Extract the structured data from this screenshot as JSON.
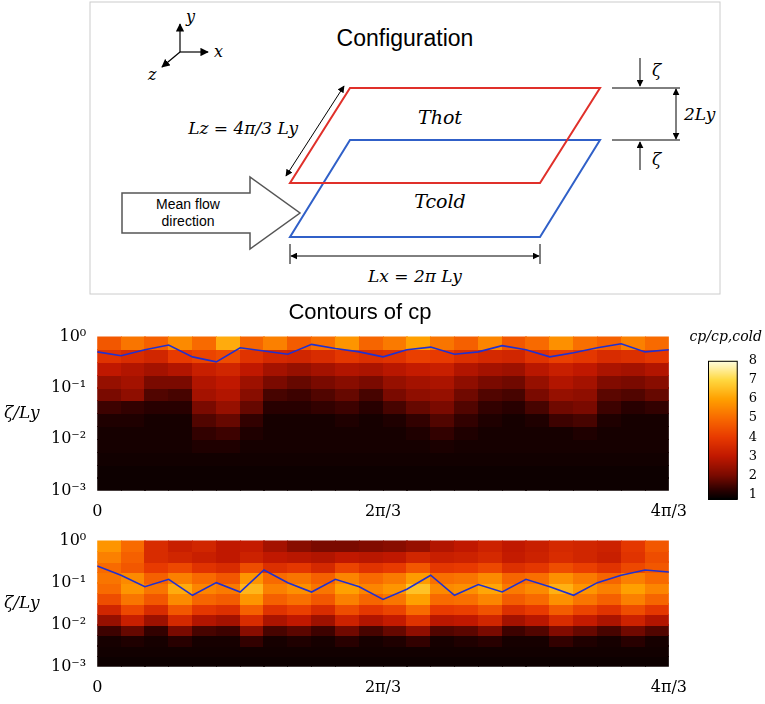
{
  "configuration": {
    "title": "Configuration",
    "axes": [
      "y",
      "x",
      "z"
    ],
    "hot": "Thot",
    "cold": "Tcold",
    "flow": "Mean flow direction",
    "lz": "Lz = 4π/3 Ly",
    "lx": "Lx = 2π Ly",
    "height": "2Ly",
    "offset": "ζ"
  },
  "chart_data": [
    {
      "type": "heatmap",
      "title": "Contours of cp",
      "ylabel": "ζ/Ly",
      "log": "y",
      "grid": false,
      "xlim": [
        0,
        4.1888
      ],
      "ylim": [
        0.001,
        1
      ],
      "xticks": [
        0,
        {
          "value": 2.0944,
          "label": "2π/3"
        },
        {
          "value": 4.1888,
          "label": "4π/3"
        }
      ],
      "yticks": [
        {
          "value": 0.001,
          "label": "10⁻³"
        },
        {
          "value": 0.01,
          "label": "10⁻²"
        },
        {
          "value": 0.1,
          "label": "10⁻¹"
        },
        {
          "value": 1,
          "label": "10⁰"
        }
      ],
      "x_edges": [
        0,
        0.1745,
        0.3491,
        0.5236,
        0.6981,
        0.8727,
        1.0472,
        1.2217,
        1.3963,
        1.5708,
        1.7453,
        1.9199,
        2.0944,
        2.2689,
        2.4435,
        2.618,
        2.7925,
        2.9671,
        3.1416,
        3.3161,
        3.4907,
        3.6652,
        3.8397,
        4.0143,
        4.1888
      ],
      "y_edges": [
        0.001,
        0.001778,
        0.003162,
        0.005623,
        0.01,
        0.01778,
        0.03162,
        0.05623,
        0.1,
        0.1778,
        0.3162,
        0.5623,
        1
      ],
      "cells": [
        [
          0.9,
          0.9,
          0.9,
          0.9,
          0.9,
          0.9,
          0.9,
          0.9,
          0.9,
          0.9,
          0.9,
          0.9,
          0.9,
          0.9,
          0.9,
          0.9,
          0.9,
          0.9,
          0.9,
          0.9,
          0.9,
          0.9,
          0.9,
          0.9
        ],
        [
          0.9,
          0.9,
          0.9,
          0.9,
          0.9,
          0.9,
          0.9,
          0.9,
          0.9,
          0.9,
          0.9,
          0.9,
          0.9,
          0.9,
          0.9,
          0.9,
          0.9,
          0.9,
          0.9,
          0.9,
          0.9,
          0.9,
          0.9,
          0.9
        ],
        [
          0.95,
          0.95,
          0.95,
          0.95,
          0.95,
          0.95,
          0.95,
          0.95,
          0.95,
          0.95,
          0.95,
          0.95,
          0.95,
          0.95,
          0.95,
          0.95,
          0.95,
          0.95,
          0.95,
          0.95,
          0.95,
          0.95,
          0.95,
          0.95
        ],
        [
          1,
          1,
          1,
          1,
          1.1,
          1.1,
          1,
          1,
          1,
          1,
          1,
          1,
          1,
          1,
          1.05,
          1,
          1,
          1,
          1,
          1,
          1,
          1,
          1,
          1
        ],
        [
          1,
          1,
          1,
          1,
          1.3,
          1.4,
          1.1,
          1,
          1,
          1,
          1,
          1,
          1,
          1.1,
          1.3,
          1.1,
          1,
          1,
          1,
          1,
          1.1,
          1,
          1,
          1
        ],
        [
          1.1,
          1.1,
          1.0,
          1.0,
          1.6,
          1.8,
          1.3,
          1.0,
          1.0,
          1.0,
          1.1,
          1.0,
          1.1,
          1.3,
          1.6,
          1.3,
          1.1,
          1.0,
          1.1,
          1.4,
          1.5,
          1.1,
          1.0,
          1.0
        ],
        [
          1.4,
          1.3,
          1.2,
          1.2,
          2.0,
          2.4,
          1.8,
          1.2,
          1.2,
          1.3,
          1.4,
          1.2,
          1.5,
          1.8,
          2.0,
          1.6,
          1.3,
          1.2,
          1.5,
          1.9,
          2.0,
          1.4,
          1.2,
          1.3
        ],
        [
          2.0,
          2.3,
          1.6,
          1.5,
          2.6,
          2.8,
          2.2,
          1.5,
          1.4,
          1.6,
          1.8,
          1.5,
          2.0,
          2.3,
          2.4,
          1.9,
          1.6,
          1.5,
          2.0,
          2.4,
          2.3,
          1.7,
          1.6,
          1.8
        ],
        [
          2.4,
          2.6,
          2.0,
          2.0,
          2.8,
          3.0,
          2.5,
          2.0,
          1.8,
          2.0,
          2.2,
          2.0,
          2.4,
          2.6,
          2.7,
          2.3,
          2.0,
          1.9,
          2.4,
          2.8,
          2.6,
          2.1,
          2.0,
          2.2
        ],
        [
          3.0,
          2.8,
          2.6,
          2.8,
          3.2,
          3.4,
          3.0,
          2.6,
          2.4,
          2.6,
          2.8,
          2.7,
          2.9,
          3.1,
          3.2,
          2.8,
          2.6,
          2.5,
          2.9,
          3.2,
          3.0,
          2.7,
          2.6,
          2.8
        ],
        [
          3.8,
          3.6,
          3.4,
          4.0,
          4.2,
          4.4,
          3.8,
          3.5,
          3.4,
          3.6,
          3.9,
          3.7,
          3.8,
          4.1,
          4.0,
          3.7,
          3.5,
          3.4,
          3.8,
          4.1,
          3.9,
          3.6,
          3.7,
          3.9
        ],
        [
          4.6,
          5.2,
          4.8,
          5.6,
          5.0,
          6.2,
          4.9,
          5.4,
          4.7,
          5.1,
          5.8,
          4.9,
          5.3,
          6.0,
          5.2,
          4.8,
          5.5,
          4.6,
          5.0,
          5.7,
          5.1,
          4.8,
          5.4,
          5.0
        ]
      ],
      "contour": {
        "color": "#2030d0",
        "x": [
          0,
          0.1745,
          0.3491,
          0.5236,
          0.6981,
          0.8727,
          1.0472,
          1.2217,
          1.3963,
          1.5708,
          1.7453,
          1.9199,
          2.0944,
          2.2689,
          2.4435,
          2.618,
          2.7925,
          2.9671,
          3.1416,
          3.3161,
          3.4907,
          3.6652,
          3.8397,
          4.0143,
          4.1888
        ],
        "y": [
          0.5,
          0.42,
          0.55,
          0.68,
          0.4,
          0.32,
          0.6,
          0.52,
          0.45,
          0.7,
          0.58,
          0.5,
          0.4,
          0.55,
          0.62,
          0.45,
          0.5,
          0.66,
          0.55,
          0.4,
          0.48,
          0.6,
          0.72,
          0.5,
          0.55
        ]
      },
      "colorbar": {
        "range": [
          0.75,
          8
        ],
        "ticks": [
          1,
          2,
          3,
          4,
          5,
          6,
          7,
          8
        ],
        "label": "cp/cp,cold"
      }
    },
    {
      "type": "heatmap",
      "ylabel": "ζ/Ly",
      "log": "y",
      "grid": false,
      "xlim": [
        0,
        4.1888
      ],
      "ylim": [
        0.001,
        1
      ],
      "xticks": [
        0,
        {
          "value": 2.0944,
          "label": "2π/3"
        },
        {
          "value": 4.1888,
          "label": "4π/3"
        }
      ],
      "yticks": [
        {
          "value": 0.001,
          "label": "10⁻³"
        },
        {
          "value": 0.01,
          "label": "10⁻²"
        },
        {
          "value": 0.1,
          "label": "10⁻¹"
        },
        {
          "value": 1,
          "label": "10⁰"
        }
      ],
      "x_edges": [
        0,
        0.1745,
        0.3491,
        0.5236,
        0.6981,
        0.8727,
        1.0472,
        1.2217,
        1.3963,
        1.5708,
        1.7453,
        1.9199,
        2.0944,
        2.2689,
        2.4435,
        2.618,
        2.7925,
        2.9671,
        3.1416,
        3.3161,
        3.4907,
        3.6652,
        3.8397,
        4.0143,
        4.1888
      ],
      "y_edges": [
        0.001,
        0.001778,
        0.003162,
        0.005623,
        0.01,
        0.01778,
        0.03162,
        0.05623,
        0.1,
        0.1778,
        0.3162,
        0.5623,
        1
      ],
      "cells": [
        [
          0.9,
          0.9,
          0.9,
          0.9,
          0.9,
          0.9,
          0.9,
          0.9,
          0.9,
          0.9,
          0.9,
          0.9,
          0.9,
          0.9,
          0.9,
          0.9,
          0.9,
          0.9,
          0.9,
          0.9,
          0.9,
          0.9,
          0.9,
          0.9
        ],
        [
          0.95,
          0.95,
          0.95,
          0.95,
          0.95,
          0.95,
          0.95,
          0.95,
          0.95,
          0.95,
          0.95,
          0.95,
          0.95,
          0.95,
          0.95,
          0.95,
          0.95,
          0.95,
          0.95,
          0.95,
          0.95,
          0.95,
          0.95,
          0.95
        ],
        [
          1.0,
          1.1,
          1.0,
          1.2,
          1.0,
          1.0,
          1.3,
          1.0,
          1.1,
          1.0,
          1.2,
          1.0,
          1.1,
          1.3,
          1.0,
          1.1,
          1.2,
          1.0,
          1.0,
          1.3,
          1.1,
          1.0,
          1.2,
          1.0
        ],
        [
          1.4,
          1.8,
          1.3,
          2.0,
          1.5,
          1.4,
          2.2,
          1.5,
          1.7,
          1.4,
          1.9,
          1.5,
          1.8,
          2.3,
          1.6,
          1.7,
          2.0,
          1.4,
          1.6,
          2.1,
          1.8,
          1.5,
          1.9,
          1.6
        ],
        [
          2.4,
          3.2,
          2.5,
          3.5,
          2.8,
          2.6,
          3.6,
          2.7,
          3.0,
          2.5,
          3.3,
          2.8,
          3.1,
          3.8,
          2.9,
          3.0,
          3.4,
          2.6,
          2.9,
          3.6,
          3.1,
          2.7,
          3.3,
          2.8
        ],
        [
          3.4,
          4.3,
          3.6,
          4.6,
          3.9,
          3.7,
          4.8,
          3.8,
          4.1,
          3.6,
          4.4,
          3.9,
          4.2,
          5.0,
          4.0,
          4.1,
          4.5,
          3.7,
          4.0,
          4.7,
          4.2,
          3.8,
          4.4,
          3.9
        ],
        [
          4.4,
          5.2,
          4.6,
          5.6,
          4.9,
          4.7,
          5.8,
          4.8,
          5.1,
          4.6,
          5.4,
          4.9,
          5.2,
          6.0,
          5.0,
          5.1,
          5.5,
          4.7,
          5.0,
          5.7,
          5.2,
          4.8,
          5.4,
          4.9
        ],
        [
          5.0,
          5.8,
          5.2,
          6.2,
          5.5,
          5.3,
          6.4,
          5.4,
          5.7,
          5.2,
          6.0,
          5.5,
          5.8,
          6.6,
          5.6,
          5.7,
          6.1,
          5.3,
          5.6,
          6.3,
          5.8,
          5.4,
          6.0,
          5.5
        ],
        [
          5.2,
          5.6,
          4.8,
          5.4,
          5.0,
          4.6,
          5.8,
          5.0,
          5.2,
          4.8,
          5.5,
          5.0,
          5.3,
          5.9,
          5.1,
          5.2,
          5.6,
          4.9,
          5.1,
          5.7,
          5.3,
          4.9,
          5.4,
          5.0
        ],
        [
          5.0,
          4.6,
          4.0,
          4.3,
          3.8,
          3.6,
          4.4,
          3.7,
          3.9,
          3.5,
          4.2,
          3.8,
          4.0,
          4.6,
          3.9,
          4.0,
          4.3,
          3.7,
          3.9,
          4.4,
          4.1,
          3.8,
          4.3,
          4.6
        ],
        [
          5.4,
          4.8,
          3.6,
          3.4,
          3.2,
          3.0,
          3.3,
          3.0,
          2.9,
          2.8,
          3.0,
          2.9,
          3.0,
          3.4,
          3.2,
          3.3,
          3.5,
          3.1,
          3.3,
          3.6,
          3.4,
          3.2,
          3.8,
          4.4
        ],
        [
          5.8,
          5.0,
          3.6,
          3.2,
          3.4,
          3.0,
          3.1,
          2.6,
          2.2,
          2.0,
          2.0,
          2.1,
          2.2,
          2.4,
          2.8,
          3.0,
          3.3,
          3.0,
          3.2,
          3.5,
          3.4,
          3.3,
          3.9,
          4.6
        ]
      ],
      "contour": {
        "color": "#2030d0",
        "x": [
          0,
          0.1745,
          0.3491,
          0.5236,
          0.6981,
          0.8727,
          1.0472,
          1.2217,
          1.3963,
          1.5708,
          1.7453,
          1.9199,
          2.0944,
          2.2689,
          2.4435,
          2.618,
          2.7925,
          2.9671,
          3.1416,
          3.3161,
          3.4907,
          3.6652,
          3.8397,
          4.0143,
          4.1888
        ],
        "y": [
          0.25,
          0.15,
          0.08,
          0.12,
          0.05,
          0.1,
          0.06,
          0.2,
          0.1,
          0.06,
          0.12,
          0.08,
          0.04,
          0.07,
          0.15,
          0.05,
          0.09,
          0.06,
          0.12,
          0.08,
          0.05,
          0.1,
          0.15,
          0.2,
          0.18
        ]
      }
    }
  ]
}
